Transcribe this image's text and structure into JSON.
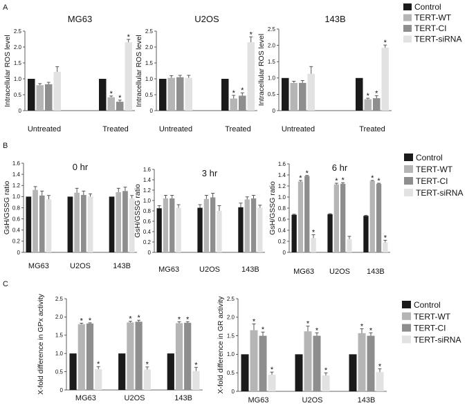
{
  "colors": {
    "series": [
      "#1a1a1a",
      "#b5b5b5",
      "#8e8e8e",
      "#e2e2e2"
    ],
    "axis": "#333333",
    "error": "#444444"
  },
  "panels": {
    "A": {
      "label": "A"
    },
    "B": {
      "label": "B"
    },
    "C": {
      "label": "C"
    }
  },
  "legend_entries": [
    "Control",
    "TERT-WT",
    "TERT-CI",
    "TERT-siRNA"
  ],
  "chart_data": [
    {
      "id": "A-MG63",
      "type": "bar",
      "panel": "A",
      "title": "MG63",
      "ylabel": "Intracellular ROS level",
      "ylim": [
        0,
        2.5
      ],
      "yticks": [
        0,
        0.5,
        1.0,
        1.5,
        2.0,
        2.5
      ],
      "categories": [
        "Untreated",
        "Treated"
      ],
      "series": [
        {
          "name": "Control",
          "values": [
            1.0,
            1.0
          ],
          "errors": [
            0,
            0
          ],
          "sig": [
            "",
            ""
          ]
        },
        {
          "name": "TERT-WT",
          "values": [
            0.8,
            0.42
          ],
          "errors": [
            0.05,
            0.04
          ],
          "sig": [
            "",
            "*"
          ]
        },
        {
          "name": "TERT-CI",
          "values": [
            0.83,
            0.28
          ],
          "errors": [
            0.06,
            0.05
          ],
          "sig": [
            "",
            "*"
          ]
        },
        {
          "name": "TERT-siRNA",
          "values": [
            1.22,
            2.15
          ],
          "errors": [
            0.16,
            0.09
          ],
          "sig": [
            "",
            "*"
          ]
        }
      ]
    },
    {
      "id": "A-U2OS",
      "type": "bar",
      "panel": "A",
      "title": "U2OS",
      "ylabel": "Intracellular ROS level",
      "ylim": [
        0,
        2.5
      ],
      "yticks": [
        0,
        0.5,
        1.0,
        1.5,
        2.0,
        2.5
      ],
      "categories": [
        "Untreated",
        "Treated"
      ],
      "series": [
        {
          "name": "Control",
          "values": [
            1.0,
            1.0
          ],
          "errors": [
            0,
            0
          ],
          "sig": [
            "",
            ""
          ]
        },
        {
          "name": "TERT-WT",
          "values": [
            1.03,
            0.38
          ],
          "errors": [
            0.07,
            0.1
          ],
          "sig": [
            "",
            "*"
          ]
        },
        {
          "name": "TERT-CI",
          "values": [
            1.05,
            0.47
          ],
          "errors": [
            0.06,
            0.09
          ],
          "sig": [
            "",
            "*"
          ]
        },
        {
          "name": "TERT-siRNA",
          "values": [
            1.03,
            2.15
          ],
          "errors": [
            0.08,
            0.17
          ],
          "sig": [
            "",
            "*"
          ]
        }
      ]
    },
    {
      "id": "A-143B",
      "type": "bar",
      "panel": "A",
      "title": "143B",
      "ylabel": "Intracellular ROS level",
      "ylim": [
        0,
        2.5
      ],
      "yticks": [
        0,
        0.5,
        1.0,
        1.5,
        2.0,
        2.5
      ],
      "categories": [
        "Untreated",
        "Treated"
      ],
      "series": [
        {
          "name": "Control",
          "values": [
            1.0,
            1.0
          ],
          "errors": [
            0,
            0
          ],
          "sig": [
            "",
            ""
          ]
        },
        {
          "name": "TERT-WT",
          "values": [
            0.85,
            0.35
          ],
          "errors": [
            0.05,
            0.03
          ],
          "sig": [
            "",
            "*"
          ]
        },
        {
          "name": "TERT-CI",
          "values": [
            0.85,
            0.38
          ],
          "errors": [
            0.07,
            0.08
          ],
          "sig": [
            "",
            "*"
          ]
        },
        {
          "name": "TERT-siRNA",
          "values": [
            1.13,
            1.93
          ],
          "errors": [
            0.22,
            0.08
          ],
          "sig": [
            "",
            "*"
          ]
        }
      ]
    },
    {
      "id": "B-0hr",
      "type": "bar",
      "panel": "B",
      "title": "0 hr",
      "ylabel": "GsH/GSSG ratio",
      "ylim": [
        0,
        1.6
      ],
      "yticks": [
        0,
        0.2,
        0.4,
        0.6,
        0.8,
        1.0,
        1.2,
        1.4,
        1.6
      ],
      "categories": [
        "MG63",
        "U2OS",
        "143B"
      ],
      "series": [
        {
          "name": "Control",
          "values": [
            1.0,
            1.0,
            1.0
          ],
          "errors": [
            0,
            0,
            0
          ],
          "sig": [
            "",
            "",
            ""
          ]
        },
        {
          "name": "TERT-WT",
          "values": [
            1.12,
            1.07,
            1.08
          ],
          "errors": [
            0.06,
            0.08,
            0.07
          ],
          "sig": [
            "",
            "",
            ""
          ]
        },
        {
          "name": "TERT-CI",
          "values": [
            1.02,
            1.03,
            1.1
          ],
          "errors": [
            0.08,
            0.07,
            0.07
          ],
          "sig": [
            "",
            "",
            ""
          ]
        },
        {
          "name": "TERT-siRNA",
          "values": [
            0.95,
            1.0,
            0.97
          ],
          "errors": [
            0.07,
            0.05,
            0.05
          ],
          "sig": [
            "",
            "",
            ""
          ]
        }
      ]
    },
    {
      "id": "B-3hr",
      "type": "bar",
      "panel": "B",
      "title": "3 hr",
      "ylabel": "GsH/GSSG ratio",
      "ylim": [
        0,
        1.6
      ],
      "yticks": [
        0,
        0.2,
        0.4,
        0.6,
        0.8,
        1.0,
        1.2,
        1.4,
        1.6
      ],
      "categories": [
        "MG63",
        "U2OS",
        "143B"
      ],
      "series": [
        {
          "name": "Control",
          "values": [
            0.85,
            0.86,
            0.87
          ],
          "errors": [
            0.05,
            0.06,
            0.08
          ],
          "sig": [
            "",
            "",
            ""
          ]
        },
        {
          "name": "TERT-WT",
          "values": [
            1.04,
            1.03,
            1.02
          ],
          "errors": [
            0.06,
            0.07,
            0.05
          ],
          "sig": [
            "",
            "",
            ""
          ]
        },
        {
          "name": "TERT-CI",
          "values": [
            1.04,
            1.06,
            1.04
          ],
          "errors": [
            0.06,
            0.08,
            0.06
          ],
          "sig": [
            "",
            "",
            ""
          ]
        },
        {
          "name": "TERT-siRNA",
          "values": [
            0.86,
            0.8,
            0.86
          ],
          "errors": [
            0.06,
            0.1,
            0.05
          ],
          "sig": [
            "",
            "",
            ""
          ]
        }
      ]
    },
    {
      "id": "B-6hr",
      "type": "bar",
      "panel": "B",
      "title": "6 hr",
      "ylabel": "GsH/GSSG ratio",
      "ylim": [
        0,
        1.6
      ],
      "yticks": [
        0,
        0.2,
        0.4,
        0.6,
        0.8,
        1.0,
        1.2,
        1.4,
        1.6
      ],
      "categories": [
        "MG63",
        "U2OS",
        "143B"
      ],
      "series": [
        {
          "name": "Control",
          "values": [
            0.68,
            0.69,
            0.66
          ],
          "errors": [
            0.01,
            0.01,
            0.01
          ],
          "sig": [
            "",
            "",
            ""
          ]
        },
        {
          "name": "TERT-WT",
          "values": [
            1.28,
            1.23,
            1.29
          ],
          "errors": [
            0.02,
            0.02,
            0.01
          ],
          "sig": [
            "*",
            "*",
            "*"
          ]
        },
        {
          "name": "TERT-CI",
          "values": [
            1.38,
            1.24,
            1.24
          ],
          "errors": [
            0.01,
            0.02,
            0.01
          ],
          "sig": [
            "*",
            "*",
            "*"
          ]
        },
        {
          "name": "TERT-siRNA",
          "values": [
            0.26,
            0.24,
            0.18
          ],
          "errors": [
            0.06,
            0.05,
            0.04
          ],
          "sig": [
            "*",
            "",
            "*"
          ]
        }
      ]
    },
    {
      "id": "C-GPx",
      "type": "bar",
      "panel": "C",
      "title": "",
      "ylabel": "X-fold difference in GPx activity",
      "ylim": [
        0,
        2.5
      ],
      "yticks": [
        0,
        0.5,
        1.0,
        1.5,
        2.0,
        2.5
      ],
      "categories": [
        "MG63",
        "U2OS",
        "143B"
      ],
      "series": [
        {
          "name": "Control",
          "values": [
            1.0,
            1.0,
            1.0
          ],
          "errors": [
            0,
            0,
            0
          ],
          "sig": [
            "",
            "",
            ""
          ]
        },
        {
          "name": "TERT-WT",
          "values": [
            1.8,
            1.85,
            1.83
          ],
          "errors": [
            0.03,
            0.03,
            0.04
          ],
          "sig": [
            "*",
            "*",
            "*"
          ]
        },
        {
          "name": "TERT-CI",
          "values": [
            1.82,
            1.87,
            1.84
          ],
          "errors": [
            0.02,
            0.04,
            0.03
          ],
          "sig": [
            "*",
            "*",
            "*"
          ]
        },
        {
          "name": "TERT-siRNA",
          "values": [
            0.57,
            0.56,
            0.52
          ],
          "errors": [
            0.07,
            0.07,
            0.1
          ],
          "sig": [
            "*",
            "*",
            "*"
          ]
        }
      ]
    },
    {
      "id": "C-GR",
      "type": "bar",
      "panel": "C",
      "title": "",
      "ylabel": "X-fold difference in GR activity",
      "ylim": [
        0,
        2.5
      ],
      "yticks": [
        0,
        0.5,
        1.0,
        1.5,
        2.0,
        2.5
      ],
      "categories": [
        "MG63",
        "U2OS",
        "143B"
      ],
      "series": [
        {
          "name": "Control",
          "values": [
            1.0,
            1.0,
            1.0
          ],
          "errors": [
            0,
            0,
            0
          ],
          "sig": [
            "",
            "",
            ""
          ]
        },
        {
          "name": "TERT-WT",
          "values": [
            1.65,
            1.62,
            1.57
          ],
          "errors": [
            0.17,
            0.14,
            0.12
          ],
          "sig": [
            "*",
            "*",
            "*"
          ]
        },
        {
          "name": "TERT-CI",
          "values": [
            1.5,
            1.5,
            1.5
          ],
          "errors": [
            0.1,
            0.08,
            0.08
          ],
          "sig": [
            "*",
            "*",
            "*"
          ]
        },
        {
          "name": "TERT-siRNA",
          "values": [
            0.45,
            0.43,
            0.52
          ],
          "errors": [
            0.07,
            0.07,
            0.09
          ],
          "sig": [
            "*",
            "*",
            "*"
          ]
        }
      ]
    }
  ]
}
